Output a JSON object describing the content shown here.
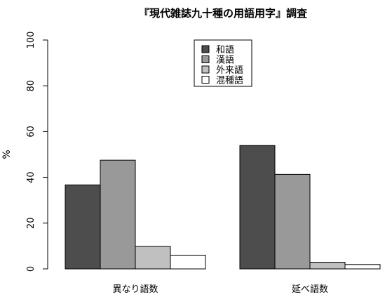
{
  "chart_data": {
    "type": "bar",
    "title": "『現代雑誌九十種の用語用字』調査",
    "xlabel": "",
    "ylabel": "%",
    "ylim": [
      0,
      100
    ],
    "yticks": [
      0,
      20,
      40,
      60,
      80,
      100
    ],
    "categories": [
      "異なり語数",
      "延べ語数"
    ],
    "legend_position": "top-center",
    "grid": false,
    "series": [
      {
        "name": "和語",
        "color": "#4d4d4d",
        "values": [
          36.7,
          53.9
        ]
      },
      {
        "name": "漢語",
        "color": "#999999",
        "values": [
          47.5,
          41.3
        ]
      },
      {
        "name": "外来語",
        "color": "#c0c0c0",
        "values": [
          9.8,
          2.9
        ]
      },
      {
        "name": "混種語",
        "color": "#ffffff",
        "values": [
          6.0,
          1.9
        ]
      }
    ]
  }
}
